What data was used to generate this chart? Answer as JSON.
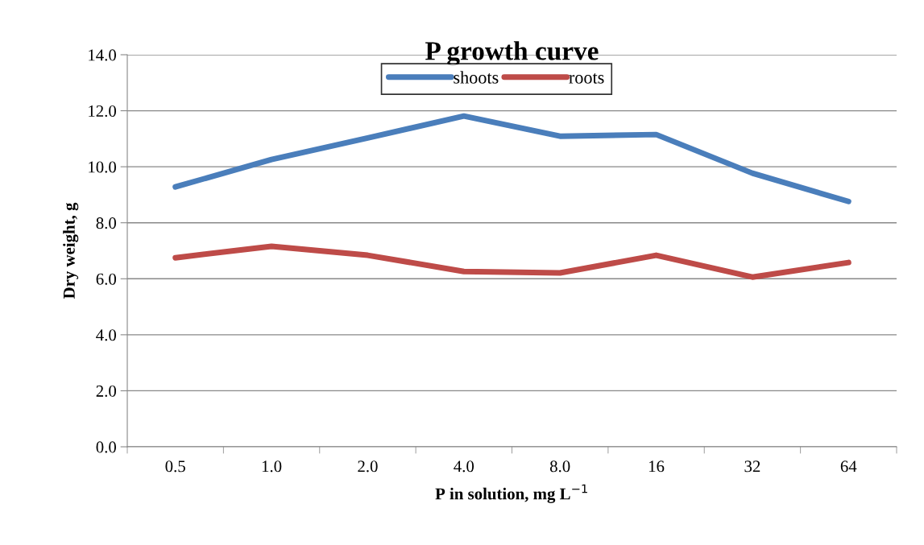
{
  "chart_data": {
    "type": "line",
    "title": "P growth curve",
    "xlabel": "P in solution, mg L$^{−1}$",
    "ylabel": "Dry weight, g",
    "categories": [
      "0.5",
      "1.0",
      "2.0",
      "4.0",
      "8.0",
      "16",
      "32",
      "64"
    ],
    "series": [
      {
        "name": "shoots",
        "color": "#4a7ebb",
        "values": [
          9.28,
          10.26,
          11.03,
          11.81,
          11.09,
          11.15,
          9.77,
          8.76
        ]
      },
      {
        "name": "roots",
        "color": "#be4b48",
        "values": [
          6.75,
          7.16,
          6.84,
          6.26,
          6.21,
          6.84,
          6.06,
          6.58
        ]
      }
    ],
    "ylim": [
      0,
      14
    ],
    "yticks": [
      {
        "value": 0,
        "label": "0.0"
      },
      {
        "value": 2,
        "label": "2.0"
      },
      {
        "value": 4,
        "label": "4.0"
      },
      {
        "value": 6,
        "label": "6.0"
      },
      {
        "value": 8,
        "label": "8.0"
      },
      {
        "value": 10,
        "label": "10.0"
      },
      {
        "value": 12,
        "label": "12.0"
      },
      {
        "value": 14,
        "label": "14.0"
      }
    ],
    "grid": "y",
    "legend": "top",
    "marker": "none",
    "line_style": "solid"
  }
}
